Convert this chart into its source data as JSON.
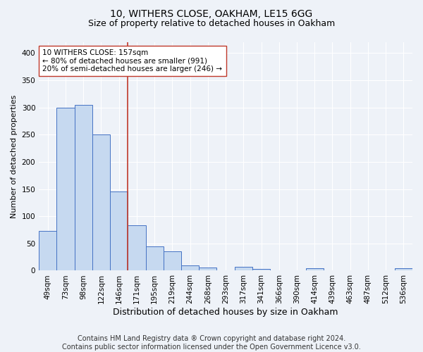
{
  "title1": "10, WITHERS CLOSE, OAKHAM, LE15 6GG",
  "title2": "Size of property relative to detached houses in Oakham",
  "xlabel": "Distribution of detached houses by size in Oakham",
  "ylabel": "Number of detached properties",
  "categories": [
    "49sqm",
    "73sqm",
    "98sqm",
    "122sqm",
    "146sqm",
    "171sqm",
    "195sqm",
    "219sqm",
    "244sqm",
    "268sqm",
    "293sqm",
    "317sqm",
    "341sqm",
    "366sqm",
    "390sqm",
    "414sqm",
    "439sqm",
    "463sqm",
    "487sqm",
    "512sqm",
    "536sqm"
  ],
  "values": [
    73,
    300,
    305,
    250,
    145,
    83,
    45,
    35,
    10,
    6,
    0,
    7,
    3,
    0,
    0,
    4,
    0,
    0,
    0,
    0,
    4
  ],
  "bar_color": "#c6d9f0",
  "bar_edge_color": "#4472c4",
  "vline_x": 4.5,
  "vline_color": "#c0392b",
  "annotation_text": "10 WITHERS CLOSE: 157sqm\n← 80% of detached houses are smaller (991)\n20% of semi-detached houses are larger (246) →",
  "annotation_box_color": "white",
  "annotation_box_edge_color": "#c0392b",
  "ylim": [
    0,
    420
  ],
  "yticks": [
    0,
    50,
    100,
    150,
    200,
    250,
    300,
    350,
    400
  ],
  "footer": "Contains HM Land Registry data ® Crown copyright and database right 2024.\nContains public sector information licensed under the Open Government Licence v3.0.",
  "background_color": "#eef2f8",
  "grid_color": "#ffffff",
  "title1_fontsize": 10,
  "title2_fontsize": 9,
  "xlabel_fontsize": 9,
  "ylabel_fontsize": 8,
  "footer_fontsize": 7,
  "tick_fontsize": 7.5,
  "annot_fontsize": 7.5
}
